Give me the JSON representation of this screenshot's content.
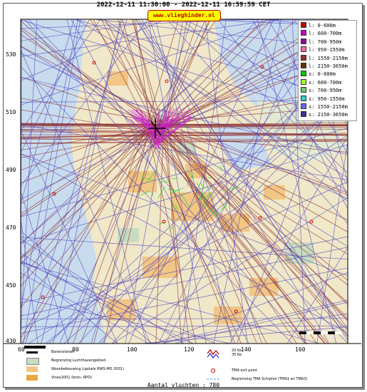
{
  "header": {
    "time_range": "2022-12-11 11:30:00 - 2022-12-11 16:59:59 CET",
    "brand": "www.vlieghinder.nl"
  },
  "axes": {
    "y_ticks": [
      "530",
      "510",
      "490",
      "470",
      "450",
      "430"
    ],
    "x_ticks": [
      "60",
      "80",
      "100",
      "120",
      "140",
      "160"
    ]
  },
  "legend": [
    {
      "label": "l:  0-600m",
      "color": "#cc0000"
    },
    {
      "label": "l:  600-700m",
      "color": "#cc00cc"
    },
    {
      "label": "l:  700-950m",
      "color": "#990099"
    },
    {
      "label": "l:  950-1550m",
      "color": "#ff66aa"
    },
    {
      "label": "l:  1550-2150m",
      "color": "#993333"
    },
    {
      "label": "l:  2150-3650m",
      "color": "#663300"
    },
    {
      "label": "s:  0-600m",
      "color": "#00cc00"
    },
    {
      "label": "s:  600-700m",
      "color": "#99ff33"
    },
    {
      "label": "s:  700-950m",
      "color": "#66cc66"
    },
    {
      "label": "s:  950-1550m",
      "color": "#33cccc"
    },
    {
      "label": "s:  1550-2150m",
      "color": "#6666ff"
    },
    {
      "label": "s:  2150-3650m",
      "color": "#333399"
    }
  ],
  "map_key": {
    "runways": "Banenstelsel",
    "airport_boundary": "Begrenzing Luchthavengebied",
    "housing": "Woonbebouwing (update RWS-MD 2001)",
    "vinex": "Vinex2001 (bron: RPD)",
    "noise_contour": "20 Ke\n35 Ke",
    "tma_exit": "TMA exit point",
    "tma_boundary": "Begrenzing TMA Schiphol  (TMA1 en TMA3)"
  },
  "footer": {
    "count_label": "Aantal vluchten : 780"
  },
  "colors": {
    "sea": "#c8dcee",
    "land": "#f0e8c8",
    "urban": "#f2c684",
    "green": "#c8ddc0",
    "landing": "#8b2a2a",
    "departure": "#4a3fbf",
    "low_landing": "#cc22cc",
    "low_depart": "#33dd33"
  }
}
